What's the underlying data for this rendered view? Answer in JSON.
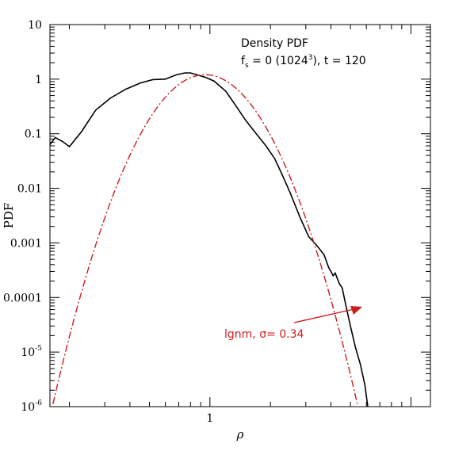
{
  "chart_data": {
    "type": "line",
    "title": "",
    "xlabel": "ρ",
    "ylabel": "PDF",
    "xscale": "log",
    "yscale": "log",
    "xlim": [
      0.16,
      12.5
    ],
    "ylim": [
      1e-06,
      10
    ],
    "x_ticks": [
      {
        "value": 1,
        "label": "1"
      }
    ],
    "y_ticks": [
      {
        "value": 10,
        "label": "10"
      },
      {
        "value": 1,
        "label": "1"
      },
      {
        "value": 0.1,
        "label": "0.1"
      },
      {
        "value": 0.01,
        "label": "0.01"
      },
      {
        "value": 0.001,
        "label": "0.001"
      },
      {
        "value": 0.0001,
        "label": "0.0001"
      },
      {
        "value": 1e-05,
        "label": "10",
        "sup": "-5"
      },
      {
        "value": 1e-06,
        "label": "10",
        "sup": "-6"
      }
    ],
    "grid": false,
    "annotations": {
      "line1": "Density PDF",
      "line2_prefix": "f",
      "line2_sub": "s",
      "line2_mid": " = 0 (1024",
      "line2_sup": "3",
      "line2_suffix": "), t = 120"
    },
    "fit_label": "lgnm, σ= 0.34",
    "colors": {
      "data": "#000000",
      "fit": "#cc1f1f"
    },
    "series": [
      {
        "style": "solid",
        "color": "#000000",
        "x": [
          0.16,
          0.17,
          0.185,
          0.2,
          0.23,
          0.27,
          0.32,
          0.38,
          0.45,
          0.52,
          0.6,
          0.68,
          0.75,
          0.8,
          0.85,
          0.95,
          1.05,
          1.2,
          1.35,
          1.5,
          1.7,
          1.9,
          2.1,
          2.3,
          2.5,
          2.8,
          3.1,
          3.4,
          3.7,
          3.9,
          4.0,
          4.1,
          4.2,
          4.4,
          4.55,
          4.75,
          5.0,
          5.3,
          5.6,
          5.9,
          6.1
        ],
        "y": [
          0.063,
          0.085,
          0.072,
          0.058,
          0.11,
          0.27,
          0.45,
          0.65,
          0.85,
          0.98,
          1.0,
          1.2,
          1.3,
          1.3,
          1.22,
          1.08,
          0.92,
          0.6,
          0.32,
          0.18,
          0.1,
          0.06,
          0.035,
          0.017,
          0.0085,
          0.003,
          0.0013,
          0.0009,
          0.0006,
          0.00035,
          0.0003,
          0.00025,
          0.00028,
          0.00018,
          0.00015,
          7e-05,
          3e-05,
          1.2e-05,
          6e-06,
          2.5e-06,
          1e-06
        ]
      },
      {
        "style": "dash-dot",
        "color": "#cc1f1f",
        "generator": {
          "kind": "lognormal",
          "sigma": 0.34,
          "x_start": 0.16,
          "x_end": 6.4
        }
      }
    ]
  }
}
